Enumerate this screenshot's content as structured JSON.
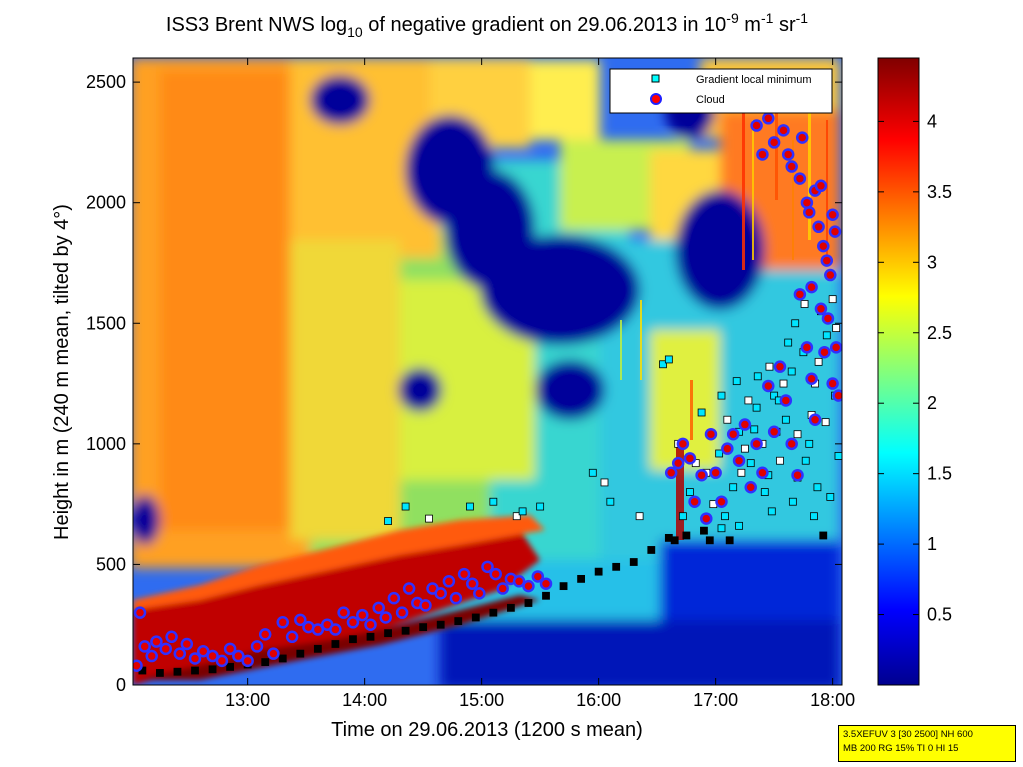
{
  "title": {
    "prefix": "ISS3 Brent NWS log",
    "sub": "10",
    "mid": " of negative gradient on 29.06.2013 in 10",
    "exp1": "-9",
    "m": " m",
    "exp2": "-1",
    "sr": " sr",
    "exp3": "-1"
  },
  "legend": {
    "items": [
      {
        "label": "Gradient local minimum",
        "marker": "square",
        "color": "#00ffff"
      },
      {
        "label": "Cloud",
        "marker": "circle",
        "color": "#ff0000"
      }
    ]
  },
  "settings_box": {
    "line1": "3.5XEFUV 3 [30 2500] NH 600",
    "line2": "MB 200 RG 15% TI 0 HI 15"
  },
  "colors": {
    "colormap": "jet",
    "jet_low": "#00008f",
    "jet_high": "#800000",
    "settings_bg": "#ffff00"
  },
  "chart_data": {
    "type": "heatmap",
    "xlabel": "Time on 29.06.2013 (1200 s mean)",
    "ylabel": "Height in m (240 m mean, tilted by 4°)",
    "xticks": [
      "13:00",
      "14:00",
      "15:00",
      "16:00",
      "17:00",
      "18:00"
    ],
    "xtick_hours": [
      13,
      14,
      15,
      16,
      17,
      18
    ],
    "xlim_hours": [
      12.02,
      18.08
    ],
    "yticks": [
      "0",
      "500",
      "1000",
      "1500",
      "2000",
      "2500"
    ],
    "ytick_values": [
      0,
      500,
      1000,
      1500,
      2000,
      2500
    ],
    "ylim": [
      0,
      2600
    ],
    "colorbar": {
      "ticks": [
        "0.5",
        "1",
        "1.5",
        "2",
        "2.5",
        "3",
        "3.5",
        "4"
      ],
      "tick_values": [
        0.5,
        1,
        1.5,
        2,
        2.5,
        3,
        3.5,
        4
      ],
      "range": [
        0,
        4.45
      ]
    },
    "grid": false,
    "legend_position": "top-right",
    "series": [
      {
        "name": "Gradient local minimum",
        "points": [
          [
            12.1,
            60
          ],
          [
            12.25,
            50
          ],
          [
            12.4,
            55
          ],
          [
            12.55,
            60
          ],
          [
            12.7,
            65
          ],
          [
            12.85,
            75
          ],
          [
            13.0,
            85
          ],
          [
            13.15,
            95
          ],
          [
            13.3,
            110
          ],
          [
            13.45,
            130
          ],
          [
            13.6,
            150
          ],
          [
            13.75,
            170
          ],
          [
            13.9,
            190
          ],
          [
            14.05,
            200
          ],
          [
            14.2,
            215
          ],
          [
            14.35,
            225
          ],
          [
            14.5,
            240
          ],
          [
            14.65,
            250
          ],
          [
            14.8,
            265
          ],
          [
            14.95,
            280
          ],
          [
            15.1,
            300
          ],
          [
            15.25,
            320
          ],
          [
            15.4,
            340
          ],
          [
            15.55,
            370
          ],
          [
            15.7,
            410
          ],
          [
            15.85,
            440
          ],
          [
            16.0,
            470
          ],
          [
            16.15,
            490
          ],
          [
            16.3,
            510
          ],
          [
            16.45,
            560
          ],
          [
            16.6,
            610
          ],
          [
            16.75,
            620
          ],
          [
            16.9,
            640
          ],
          [
            17.05,
            650
          ],
          [
            17.2,
            660
          ],
          [
            14.2,
            680
          ],
          [
            14.35,
            740
          ],
          [
            14.55,
            690
          ],
          [
            14.9,
            740
          ],
          [
            15.1,
            760
          ],
          [
            15.3,
            700
          ],
          [
            15.35,
            720
          ],
          [
            15.5,
            740
          ],
          [
            15.95,
            880
          ],
          [
            16.05,
            840
          ],
          [
            16.1,
            760
          ],
          [
            16.35,
            700
          ],
          [
            16.55,
            1330
          ],
          [
            16.6,
            1350
          ],
          [
            17.1,
            1100
          ],
          [
            17.2,
            1050
          ],
          [
            17.25,
            980
          ],
          [
            17.3,
            920
          ],
          [
            17.35,
            1150
          ],
          [
            17.4,
            1000
          ],
          [
            17.45,
            870
          ],
          [
            17.5,
            1200
          ],
          [
            17.55,
            930
          ],
          [
            17.6,
            1100
          ],
          [
            17.65,
            1300
          ],
          [
            17.7,
            860
          ],
          [
            17.75,
            1380
          ],
          [
            17.8,
            1000
          ],
          [
            17.85,
            1250
          ],
          [
            17.9,
            1550
          ],
          [
            17.95,
            1450
          ],
          [
            18.0,
            1600
          ],
          [
            18.02,
            1200
          ],
          [
            18.05,
            950
          ],
          [
            17.98,
            780
          ],
          [
            17.92,
            620
          ],
          [
            17.84,
            700
          ],
          [
            17.76,
            1580
          ],
          [
            17.68,
            1500
          ],
          [
            17.62,
            1420
          ],
          [
            17.58,
            1250
          ],
          [
            17.52,
            1050
          ],
          [
            17.48,
            720
          ],
          [
            17.42,
            800
          ],
          [
            17.36,
            1280
          ],
          [
            17.28,
            1180
          ],
          [
            17.22,
            880
          ],
          [
            17.15,
            820
          ],
          [
            17.08,
            700
          ],
          [
            17.03,
            960
          ],
          [
            16.98,
            750
          ],
          [
            16.92,
            880
          ],
          [
            16.88,
            1130
          ],
          [
            16.83,
            920
          ],
          [
            16.78,
            800
          ],
          [
            16.72,
            700
          ],
          [
            16.68,
            1000
          ],
          [
            16.65,
            600
          ],
          [
            16.95,
            600
          ],
          [
            17.12,
            600
          ],
          [
            17.7,
            1040
          ],
          [
            17.82,
            1120
          ],
          [
            17.88,
            1340
          ],
          [
            18.03,
            1480
          ],
          [
            17.94,
            1090
          ],
          [
            17.87,
            820
          ],
          [
            17.77,
            930
          ],
          [
            17.66,
            760
          ],
          [
            17.54,
            1180
          ],
          [
            17.46,
            1320
          ],
          [
            17.33,
            1060
          ],
          [
            17.18,
            1260
          ],
          [
            17.05,
            1200
          ]
        ]
      },
      {
        "name": "Cloud",
        "points": [
          [
            12.05,
            80
          ],
          [
            12.08,
            300
          ],
          [
            12.12,
            160
          ],
          [
            12.18,
            120
          ],
          [
            12.22,
            180
          ],
          [
            12.3,
            150
          ],
          [
            12.35,
            200
          ],
          [
            12.42,
            130
          ],
          [
            12.48,
            170
          ],
          [
            12.55,
            110
          ],
          [
            12.62,
            140
          ],
          [
            12.7,
            120
          ],
          [
            12.78,
            100
          ],
          [
            12.85,
            150
          ],
          [
            12.92,
            120
          ],
          [
            13.0,
            100
          ],
          [
            13.08,
            160
          ],
          [
            13.15,
            210
          ],
          [
            13.22,
            130
          ],
          [
            13.3,
            260
          ],
          [
            13.38,
            200
          ],
          [
            13.45,
            270
          ],
          [
            13.52,
            240
          ],
          [
            13.6,
            230
          ],
          [
            13.68,
            250
          ],
          [
            13.75,
            230
          ],
          [
            13.82,
            300
          ],
          [
            13.9,
            260
          ],
          [
            13.98,
            290
          ],
          [
            14.05,
            250
          ],
          [
            14.12,
            320
          ],
          [
            14.18,
            280
          ],
          [
            14.25,
            360
          ],
          [
            14.32,
            300
          ],
          [
            14.38,
            400
          ],
          [
            14.45,
            340
          ],
          [
            14.52,
            330
          ],
          [
            14.58,
            400
          ],
          [
            14.65,
            380
          ],
          [
            14.72,
            430
          ],
          [
            14.78,
            360
          ],
          [
            14.85,
            460
          ],
          [
            14.92,
            420
          ],
          [
            14.98,
            380
          ],
          [
            15.05,
            490
          ],
          [
            15.12,
            460
          ],
          [
            15.18,
            400
          ],
          [
            15.25,
            440
          ],
          [
            15.32,
            430
          ],
          [
            15.4,
            410
          ],
          [
            15.48,
            450
          ],
          [
            15.55,
            420
          ],
          [
            16.62,
            880
          ],
          [
            16.68,
            920
          ],
          [
            16.72,
            1000
          ],
          [
            16.78,
            940
          ],
          [
            16.82,
            760
          ],
          [
            16.88,
            870
          ],
          [
            16.92,
            690
          ],
          [
            16.96,
            1040
          ],
          [
            17.0,
            880
          ],
          [
            17.05,
            760
          ],
          [
            17.1,
            980
          ],
          [
            17.15,
            1040
          ],
          [
            17.2,
            930
          ],
          [
            17.25,
            1080
          ],
          [
            17.3,
            820
          ],
          [
            17.35,
            1000
          ],
          [
            17.4,
            880
          ],
          [
            17.45,
            1240
          ],
          [
            17.5,
            1050
          ],
          [
            17.55,
            1320
          ],
          [
            17.6,
            1180
          ],
          [
            17.65,
            1000
          ],
          [
            17.7,
            870
          ],
          [
            17.72,
            1620
          ],
          [
            17.78,
            1400
          ],
          [
            17.82,
            1270
          ],
          [
            17.85,
            1100
          ],
          [
            17.9,
            1560
          ],
          [
            17.93,
            1380
          ],
          [
            17.96,
            1520
          ],
          [
            18.0,
            1250
          ],
          [
            18.03,
            1400
          ],
          [
            18.05,
            1200
          ],
          [
            17.35,
            2320
          ],
          [
            17.4,
            2200
          ],
          [
            17.45,
            2350
          ],
          [
            17.5,
            2250
          ],
          [
            17.55,
            2400
          ],
          [
            17.58,
            2300
          ],
          [
            17.62,
            2200
          ],
          [
            17.65,
            2150
          ],
          [
            17.7,
            2400
          ],
          [
            17.72,
            2100
          ],
          [
            17.78,
            2000
          ],
          [
            17.8,
            1960
          ],
          [
            17.85,
            2050
          ],
          [
            17.88,
            1900
          ],
          [
            17.92,
            1820
          ],
          [
            17.95,
            1760
          ],
          [
            17.98,
            1700
          ],
          [
            18.0,
            1950
          ],
          [
            18.02,
            1880
          ],
          [
            17.82,
            1650
          ],
          [
            17.9,
            2070
          ],
          [
            17.74,
            2270
          ]
        ]
      }
    ]
  }
}
